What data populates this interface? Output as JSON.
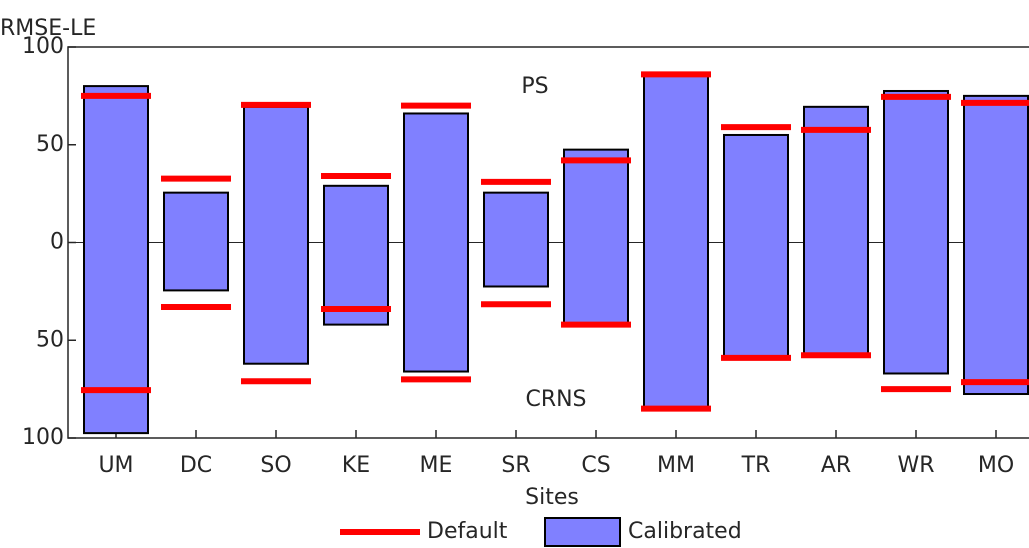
{
  "chart_data": {
    "type": "range-bar",
    "y_label": "RMSE-LE",
    "x_label": "Sites",
    "annotations": [
      "PS",
      "CRNS"
    ],
    "categories": [
      "UM",
      "DC",
      "SO",
      "KE",
      "ME",
      "SR",
      "CS",
      "MM",
      "TR",
      "AR",
      "WR",
      "MO"
    ],
    "series": [
      {
        "name": "Default",
        "color": "#ff0000",
        "values": [
          75,
          32.7,
          70.4,
          34,
          70,
          31,
          42,
          86,
          59,
          57.6,
          74.5,
          71.4
        ],
        "lower_values": [
          -75.5,
          -33,
          -71,
          -34,
          -70,
          -31.6,
          -42,
          -85,
          -59,
          -57.7,
          -75,
          -71.4
        ]
      },
      {
        "name": "Calibrated",
        "color": "#8080ff",
        "values": [
          80,
          25.5,
          69.4,
          29,
          66,
          25.5,
          47.5,
          86.7,
          55,
          69.4,
          77.5,
          75
        ],
        "lower_values": [
          -97.5,
          -24.5,
          -62,
          -42,
          -66,
          -22.5,
          -42,
          -85,
          -59,
          -57,
          -67,
          -77.5
        ]
      }
    ],
    "ylim": [
      -100,
      100
    ],
    "yticks": [
      {
        "value": -100,
        "label": "100"
      },
      {
        "value": -50,
        "label": "50"
      },
      0,
      50,
      100
    ]
  }
}
